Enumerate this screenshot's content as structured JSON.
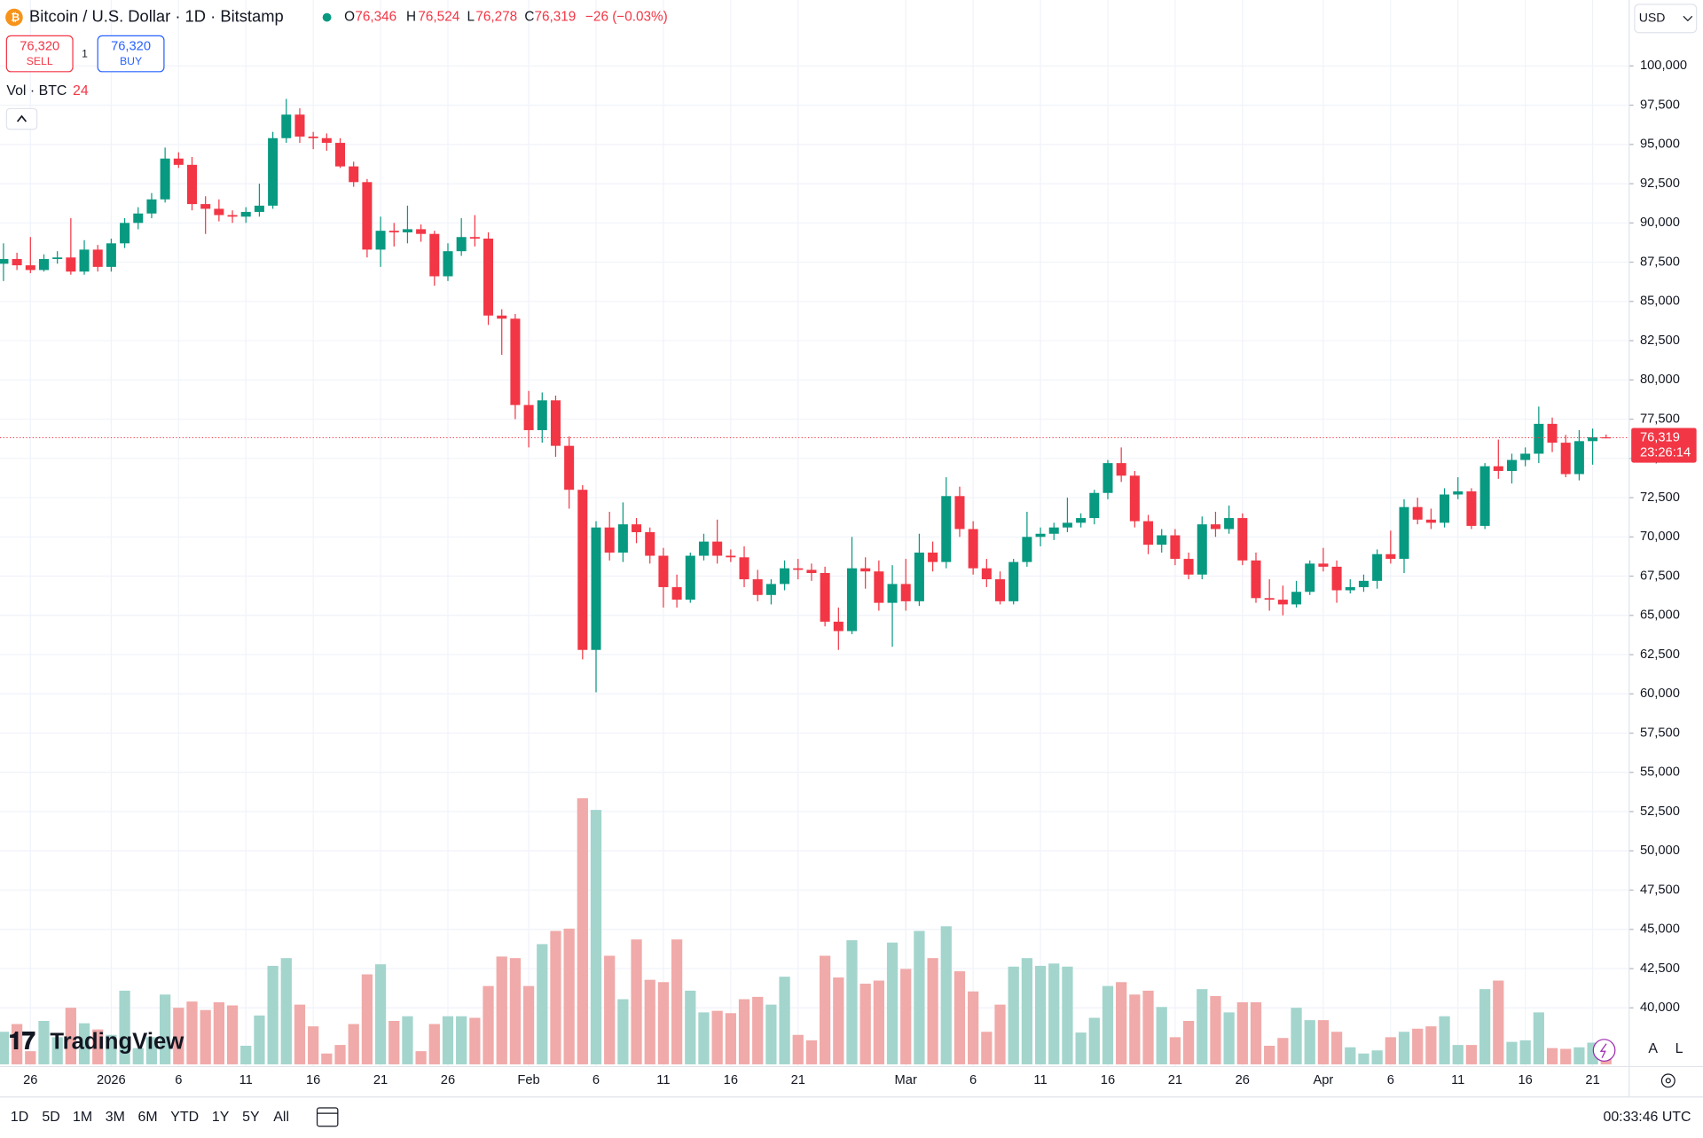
{
  "header": {
    "symbol": "Bitcoin / U.S. Dollar · 1D · Bitstamp",
    "o_label": "O",
    "o": "76,346",
    "h_label": "H",
    "h": "76,524",
    "l_label": "L",
    "l": "76,278",
    "c_label": "C",
    "c": "76,319",
    "change": "−26 (−0.03%)",
    "sell_price": "76,320",
    "sell_text": "SELL",
    "spread": "1",
    "buy_price": "76,320",
    "buy_text": "BUY",
    "vol_label": "Vol · BTC",
    "vol_value": "24",
    "currency": "USD"
  },
  "footer": {
    "ranges": [
      "1D",
      "5D",
      "1M",
      "3M",
      "6M",
      "YTD",
      "1Y",
      "5Y",
      "All"
    ],
    "clock": "00:33:46 UTC",
    "logo": "TradingView",
    "scale_buttons": [
      "A",
      "L"
    ]
  },
  "chart_data": {
    "type": "candlestick",
    "up_color": "#089981",
    "down_color": "#f23645",
    "volume_up_color": "#a3d5cd",
    "volume_down_color": "#f0aaa9",
    "grid": true,
    "categories": [
      null,
      null,
      "26",
      null,
      null,
      null,
      null,
      null,
      "2026",
      null,
      null,
      null,
      null,
      "6",
      null,
      null,
      null,
      null,
      "11",
      null,
      null,
      null,
      null,
      "16",
      null,
      null,
      null,
      null,
      "21",
      null,
      null,
      null,
      null,
      "26",
      null,
      null,
      null,
      null,
      null,
      "Feb",
      null,
      null,
      null,
      null,
      "6",
      null,
      null,
      null,
      null,
      "11",
      null,
      null,
      null,
      null,
      "16",
      null,
      null,
      null,
      null,
      "21",
      null,
      null,
      null,
      null,
      null,
      null,
      null,
      "Mar",
      null,
      null,
      null,
      null,
      "6",
      null,
      null,
      null,
      null,
      "11",
      null,
      null,
      null,
      null,
      "16",
      null,
      null,
      null,
      null,
      "21",
      null,
      null,
      null,
      null,
      "26",
      null,
      null,
      null,
      null,
      null,
      "Apr",
      null,
      null,
      null,
      null,
      "6",
      null,
      null,
      null,
      null,
      "11",
      null,
      null,
      null,
      null,
      "16",
      null,
      null,
      null,
      null,
      "21",
      null
    ],
    "open": [
      87400,
      87700,
      87300,
      87000,
      87700,
      87800,
      86900,
      88300,
      87200,
      88700,
      90000,
      90600,
      91500,
      94100,
      93700,
      91200,
      90900,
      90500,
      90400,
      90700,
      91100,
      95400,
      96900,
      95500,
      95400,
      95100,
      93600,
      92600,
      88300,
      89500,
      89400,
      89600,
      89300,
      86600,
      88200,
      89100,
      89000,
      84100,
      83900,
      78400,
      76800,
      78700,
      75800,
      73000,
      62800,
      70600,
      69000,
      70800,
      70300,
      68800,
      66800,
      66000,
      68800,
      69700,
      68800,
      68700,
      67300,
      66300,
      67000,
      68000,
      67900,
      67700,
      64600,
      64000,
      68000,
      67800,
      65800,
      67000,
      65900,
      69000,
      68400,
      72600,
      70500,
      68000,
      67300,
      65900,
      68400,
      70000,
      70200,
      70600,
      70900,
      71200,
      72800,
      74700,
      73900,
      71000,
      69500,
      70100,
      68600,
      67600,
      70800,
      70500,
      71200,
      68500,
      66100,
      66000,
      65700,
      66500,
      68300,
      68100,
      66600,
      66800,
      67200,
      68900,
      68600,
      71900,
      71100,
      70900,
      72700,
      72900,
      70700,
      74500,
      74200,
      74900,
      75300,
      77200,
      76000,
      74000,
      76100,
      76346
    ],
    "high": [
      88700,
      88100,
      89100,
      88000,
      88200,
      90300,
      88900,
      88600,
      89000,
      90300,
      91000,
      91900,
      94800,
      94500,
      94200,
      91700,
      91500,
      90800,
      91000,
      92500,
      95800,
      97900,
      97300,
      95800,
      95700,
      95400,
      93900,
      92800,
      90400,
      90000,
      91100,
      89900,
      89500,
      88700,
      90300,
      90500,
      89400,
      84500,
      84200,
      79300,
      79200,
      79000,
      76400,
      73300,
      71000,
      71600,
      72200,
      71200,
      70600,
      69300,
      67600,
      69000,
      70200,
      71100,
      69200,
      69400,
      67900,
      67300,
      68500,
      68600,
      68300,
      68100,
      65500,
      70000,
      68700,
      68500,
      68200,
      68600,
      70200,
      69700,
      73800,
      73200,
      71000,
      68600,
      67800,
      68600,
      71600,
      70600,
      70900,
      72500,
      71500,
      73000,
      74900,
      75700,
      74200,
      71400,
      70500,
      70500,
      69000,
      71300,
      71600,
      72000,
      71500,
      69000,
      67300,
      66900,
      67200,
      68500,
      69300,
      68500,
      67300,
      67600,
      69200,
      70400,
      72400,
      72500,
      71800,
      73100,
      73800,
      73100,
      74700,
      76200,
      75300,
      75700,
      78300,
      77600,
      76500,
      76800,
      76900,
      76524
    ],
    "low": [
      86300,
      87000,
      86800,
      86900,
      87400,
      86700,
      86700,
      86900,
      86900,
      88400,
      89600,
      90300,
      91300,
      93500,
      90800,
      89300,
      90100,
      90000,
      90000,
      90400,
      90900,
      95100,
      95100,
      94700,
      94600,
      93500,
      92300,
      87800,
      87200,
      88500,
      88700,
      88800,
      86000,
      86300,
      87900,
      88500,
      83500,
      81600,
      77500,
      75700,
      76000,
      75100,
      71800,
      62200,
      60100,
      68500,
      68400,
      69600,
      68300,
      65500,
      65500,
      65800,
      68500,
      68300,
      68400,
      66800,
      65900,
      65700,
      66600,
      67300,
      67200,
      64300,
      62800,
      63800,
      66700,
      65300,
      63000,
      65300,
      65600,
      67800,
      68000,
      70000,
      67600,
      66800,
      65700,
      65700,
      68100,
      69400,
      69800,
      70300,
      70600,
      70800,
      72400,
      73500,
      70600,
      68900,
      69000,
      68200,
      67300,
      67300,
      70000,
      70200,
      68200,
      65800,
      65300,
      65000,
      65500,
      66300,
      67800,
      65800,
      66400,
      66500,
      66700,
      68300,
      67700,
      70800,
      70500,
      70600,
      72400,
      70500,
      70500,
      73700,
      73400,
      74500,
      74700,
      75400,
      73800,
      73600,
      74600,
      76278
    ],
    "close": [
      87700,
      87300,
      87000,
      87700,
      87800,
      86900,
      88300,
      87200,
      88700,
      90000,
      90600,
      91500,
      94100,
      93700,
      91200,
      90900,
      90500,
      90400,
      90700,
      91100,
      95400,
      96900,
      95500,
      95400,
      95100,
      93600,
      92600,
      88300,
      89500,
      89400,
      89600,
      89300,
      86600,
      88200,
      89100,
      89000,
      84100,
      83900,
      78400,
      76800,
      78700,
      75800,
      73000,
      62800,
      70600,
      69000,
      70800,
      70300,
      68800,
      66800,
      66000,
      68800,
      69700,
      68800,
      68700,
      67300,
      66300,
      67000,
      68000,
      67900,
      67700,
      64600,
      64000,
      68000,
      67800,
      65800,
      67000,
      65900,
      69000,
      68400,
      72600,
      70500,
      68000,
      67300,
      65900,
      68400,
      70000,
      70200,
      70600,
      70900,
      71200,
      72800,
      74700,
      73900,
      71000,
      69500,
      70100,
      68600,
      67600,
      70800,
      70500,
      71200,
      68500,
      66100,
      66000,
      65700,
      66500,
      68300,
      68100,
      66600,
      66800,
      67200,
      68900,
      68600,
      71900,
      71100,
      70900,
      72700,
      72900,
      70700,
      74500,
      74200,
      74900,
      75300,
      77200,
      76000,
      74000,
      76100,
      76346,
      76319
    ],
    "volume": [
      42,
      52,
      17,
      56,
      35,
      73,
      53,
      45,
      38,
      95,
      21,
      35,
      90,
      73,
      81,
      70,
      80,
      76,
      24,
      63,
      127,
      137,
      77,
      49,
      14,
      25,
      52,
      116,
      129,
      56,
      62,
      17,
      52,
      62,
      62,
      60,
      101,
      139,
      137,
      101,
      155,
      172,
      175,
      343,
      328,
      140,
      84,
      161,
      109,
      106,
      161,
      95,
      67,
      69,
      66,
      84,
      87,
      77,
      113,
      38,
      31,
      140,
      112,
      160,
      104,
      108,
      157,
      123,
      172,
      137,
      178,
      120,
      94,
      42,
      77,
      126,
      137,
      127,
      130,
      126,
      41,
      60,
      101,
      106,
      90,
      95,
      74,
      35,
      56,
      97,
      88,
      67,
      80,
      80,
      24,
      34,
      73,
      57,
      57,
      42,
      22,
      14,
      18,
      35,
      42,
      46,
      49,
      62,
      25,
      25,
      97,
      108,
      29,
      31,
      67,
      21,
      20,
      22,
      28,
      24
    ],
    "ylim": [
      36400,
      104200
    ],
    "yticks": [
      {
        "value": 40000,
        "label": "40,000"
      },
      {
        "value": 42500,
        "label": "42,500"
      },
      {
        "value": 45000,
        "label": "45,000"
      },
      {
        "value": 47500,
        "label": "47,500"
      },
      {
        "value": 50000,
        "label": "50,000"
      },
      {
        "value": 52500,
        "label": "52,500"
      },
      {
        "value": 55000,
        "label": "55,000"
      },
      {
        "value": 57500,
        "label": "57,500"
      },
      {
        "value": 60000,
        "label": "60,000"
      },
      {
        "value": 62500,
        "label": "62,500"
      },
      {
        "value": 65000,
        "label": "65,000"
      },
      {
        "value": 67500,
        "label": "67,500"
      },
      {
        "value": 70000,
        "label": "70,000"
      },
      {
        "value": 72500,
        "label": "72,500"
      },
      {
        "value": 75000,
        "label": "75,000"
      },
      {
        "value": 77500,
        "label": "77,500"
      },
      {
        "value": 80000,
        "label": "80,000"
      },
      {
        "value": 82500,
        "label": "82,500"
      },
      {
        "value": 85000,
        "label": "85,000"
      },
      {
        "value": 87500,
        "label": "87,500"
      },
      {
        "value": 90000,
        "label": "90,000"
      },
      {
        "value": 92500,
        "label": "92,500"
      },
      {
        "value": 95000,
        "label": "95,000"
      },
      {
        "value": 97500,
        "label": "97,500"
      },
      {
        "value": 100000,
        "label": "100,000"
      }
    ],
    "last_price": {
      "value": 76319,
      "label": "76,319"
    },
    "countdown": "23:26:14"
  }
}
